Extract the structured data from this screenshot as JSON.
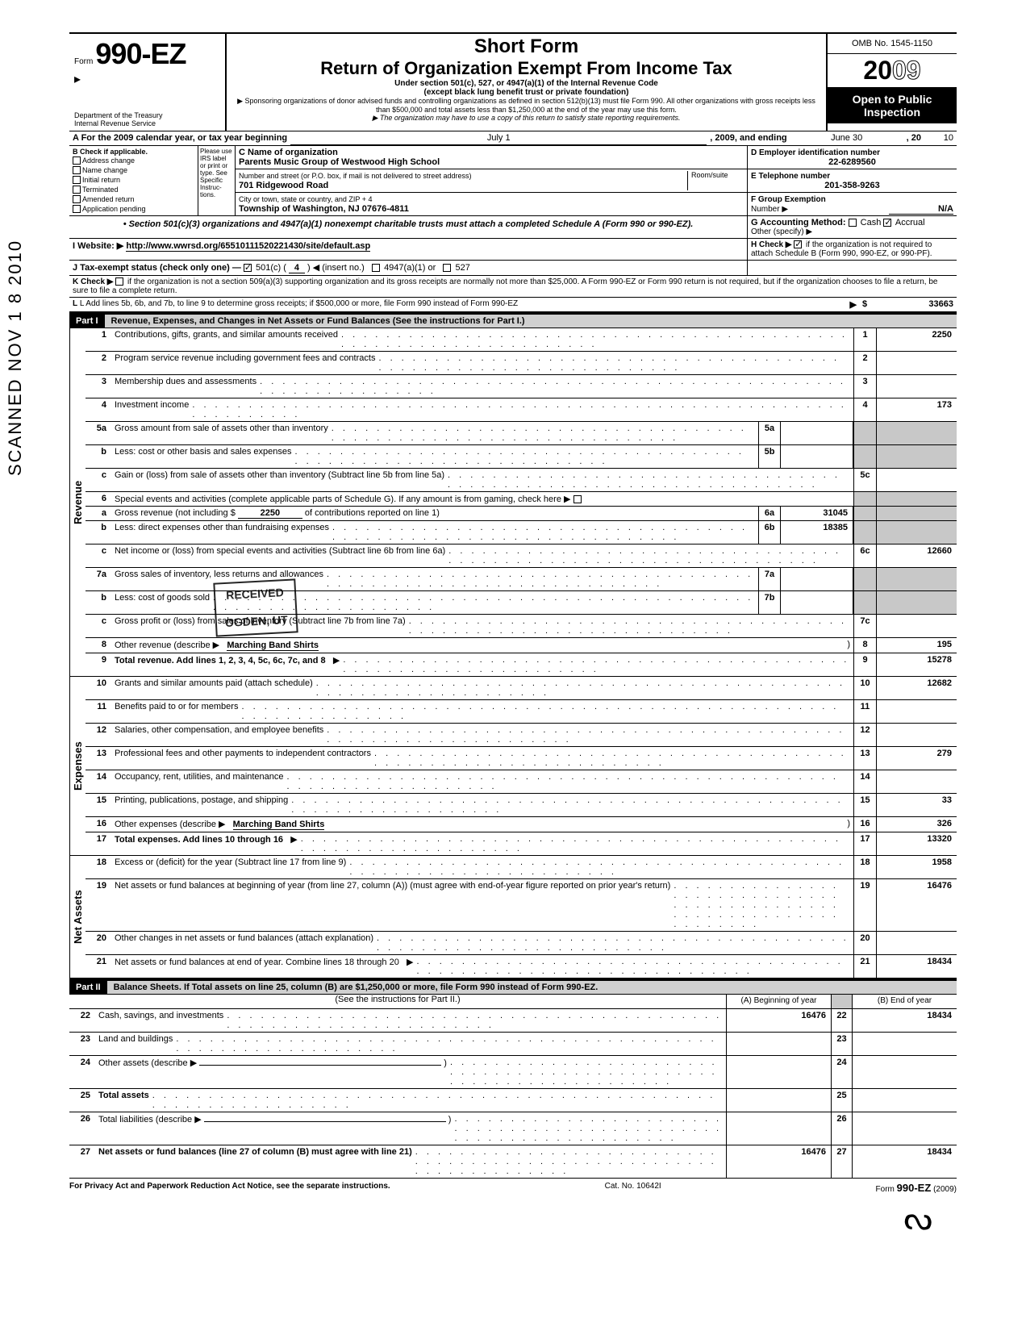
{
  "header": {
    "form_prefix": "Form",
    "form_number": "990-EZ",
    "dept1": "Department of the Treasury",
    "dept2": "Internal Revenue Service",
    "short_form": "Short Form",
    "main_title": "Return of Organization Exempt From Income Tax",
    "sub1": "Under section 501(c), 527, or 4947(a)(1) of the Internal Revenue Code",
    "sub2": "(except black lung benefit trust or private foundation)",
    "sub3": "▶ Sponsoring organizations of donor advised funds and controlling organizations as defined in section 512(b)(13) must file Form 990. All other organizations with gross receipts less than $500,000 and total assets less than $1,250,000 at the end of the year may use this form.",
    "sub4": "▶ The organization may have to use a copy of this return to satisfy state reporting requirements.",
    "omb": "OMB No. 1545-1150",
    "year_prefix": "20",
    "year_suffix": "09",
    "open1": "Open to Public",
    "open2": "Inspection"
  },
  "row_a": {
    "label": "A For the 2009 calendar year, or tax year beginning",
    "begin": "July 1",
    "mid": ", 2009, and ending",
    "end": "June 30",
    "end2": ", 20",
    "end_yr": "10"
  },
  "b": {
    "label": "B Check if applicable.",
    "items": [
      "Address change",
      "Name change",
      "Initial return",
      "Terminated",
      "Amended return",
      "Application pending"
    ],
    "please": "Please use IRS label or print or type. See Specific Instruc-tions."
  },
  "c": {
    "label": "C Name of organization",
    "name": "Parents Music Group of Westwood High School",
    "addr_label": "Number and street (or P.O. box, if mail is not delivered to street address)",
    "room": "Room/suite",
    "street": "701 Ridgewood Road",
    "city_label": "City or town, state or country, and ZIP + 4",
    "city": "Township of Washington, NJ 07676-4811"
  },
  "d": {
    "label": "D Employer identification number",
    "ein": "22-6289560",
    "e_label": "E Telephone number",
    "phone": "201-358-9263",
    "f_label": "F Group Exemption",
    "f_num": "Number ▶",
    "f_val": "N/A"
  },
  "section_note": "• Section 501(c)(3) organizations and 4947(a)(1) nonexempt charitable trusts must attach a completed Schedule A (Form 990 or 990-EZ).",
  "g": {
    "label": "G Accounting Method:",
    "cash": "Cash",
    "accrual": "Accrual",
    "other": "Other (specify) ▶"
  },
  "h": {
    "text": "H Check ▶",
    "text2": "if the organization is not required to attach Schedule B (Form 990, 990-EZ, or 990-PF)."
  },
  "i": {
    "label": "I  Website: ▶",
    "url": "http://www.wwrsd.org/65510111520221430/site/default.asp"
  },
  "j": {
    "label": "J Tax-exempt status (check only one) —",
    "c501": "501(c) (",
    "insert": "4",
    "after": ") ◀ (insert no.)",
    "opt2": "4947(a)(1) or",
    "opt3": "527"
  },
  "k": {
    "label": "K Check ▶",
    "text": "if the organization is not a section 509(a)(3) supporting organization and its gross receipts are normally not more than $25,000. A Form 990-EZ or Form 990 return is not required, but if the organization chooses to file a return, be sure to file a complete return."
  },
  "l": {
    "label": "L Add lines 5b, 6b, and 7b, to line 9 to determine gross receipts; if $500,000 or more, file Form 990 instead of Form 990-EZ",
    "arrow": "▶",
    "dollar": "$",
    "val": "33663"
  },
  "part1": {
    "label": "Part I",
    "desc": "Revenue, Expenses, and Changes in Net Assets or Fund Balances (See the instructions for Part I.)"
  },
  "side_labels": {
    "rev": "Revenue",
    "exp": "Expenses",
    "na": "Net Assets"
  },
  "lines": {
    "1": {
      "desc": "Contributions, gifts, grants, and similar amounts received",
      "val": "2250"
    },
    "2": {
      "desc": "Program service revenue including government fees and contracts",
      "val": ""
    },
    "3": {
      "desc": "Membership dues and assessments",
      "val": ""
    },
    "4": {
      "desc": "Investment income",
      "val": "173"
    },
    "5a": {
      "desc": "Gross amount from sale of assets other than inventory",
      "sub": "5a",
      "subval": ""
    },
    "5b": {
      "desc": "Less: cost or other basis and sales expenses",
      "sub": "5b",
      "subval": ""
    },
    "5c": {
      "desc": "Gain or (loss) from sale of assets other than inventory (Subtract line 5b from line 5a)",
      "val": ""
    },
    "6": {
      "desc": "Special events and activities (complete applicable parts of Schedule G). If any amount is from gaming, check here ▶"
    },
    "6a": {
      "desc_pre": "Gross revenue (not including $",
      "contrib": "2250",
      "desc_post": "of contributions reported on line 1)",
      "sub": "6a",
      "subval": "31045"
    },
    "6b": {
      "desc": "Less: direct expenses other than fundraising expenses",
      "sub": "6b",
      "subval": "18385"
    },
    "6c": {
      "desc": "Net income or (loss) from special events and activities (Subtract line 6b from line 6a)",
      "val": "12660"
    },
    "7a": {
      "desc": "Gross sales of inventory, less returns and allowances",
      "sub": "7a",
      "subval": ""
    },
    "7b": {
      "desc": "Less: cost of goods sold",
      "sub": "7b",
      "subval": ""
    },
    "7c": {
      "desc": "Gross profit or (loss) from sales of inventory (Subtract line 7b from line 7a)",
      "val": ""
    },
    "8": {
      "desc": "Other revenue (describe ▶",
      "extra": "Marching Band Shirts",
      "val": "195"
    },
    "9": {
      "desc": "Total revenue. Add lines 1, 2, 3, 4, 5c, 6c, 7c, and 8",
      "val": "15278"
    },
    "10": {
      "desc": "Grants and similar amounts paid (attach schedule)",
      "val": "12682"
    },
    "11": {
      "desc": "Benefits paid to or for members",
      "val": ""
    },
    "12": {
      "desc": "Salaries, other compensation, and employee benefits",
      "val": ""
    },
    "13": {
      "desc": "Professional fees and other payments to independent contractors",
      "val": "279"
    },
    "14": {
      "desc": "Occupancy, rent, utilities, and maintenance",
      "val": ""
    },
    "15": {
      "desc": "Printing, publications, postage, and shipping",
      "val": "33"
    },
    "16": {
      "desc": "Other expenses (describe ▶",
      "extra": "Marching Band Shirts",
      "val": "326"
    },
    "17": {
      "desc": "Total expenses. Add lines 10 through 16",
      "val": "13320"
    },
    "18": {
      "desc": "Excess or (deficit) for the year (Subtract line 17 from line 9)",
      "val": "1958"
    },
    "19": {
      "desc": "Net assets or fund balances at beginning of year (from line 27, column (A)) (must agree with end-of-year figure reported on prior year's return)",
      "val": "16476"
    },
    "20": {
      "desc": "Other changes in net assets or fund balances (attach explanation)",
      "val": ""
    },
    "21": {
      "desc": "Net assets or fund balances at end of year. Combine lines 18 through 20",
      "val": "18434"
    }
  },
  "part2": {
    "label": "Part II",
    "desc": "Balance Sheets. If Total assets on line 25, column (B) are $1,250,000 or more, file Form 990 instead of Form 990-EZ.",
    "see": "(See the instructions for Part II.)",
    "colA": "(A) Beginning of year",
    "colB": "(B) End of year"
  },
  "bal": {
    "22": {
      "desc": "Cash, savings, and investments",
      "a": "16476",
      "b": "18434"
    },
    "23": {
      "desc": "Land and buildings",
      "a": "",
      "b": ""
    },
    "24": {
      "desc": "Other assets (describe ▶",
      "a": "",
      "b": ""
    },
    "25": {
      "desc": "Total assets",
      "a": "",
      "b": ""
    },
    "26": {
      "desc": "Total liabilities (describe ▶",
      "a": "",
      "b": ""
    },
    "27": {
      "desc": "Net assets or fund balances (line 27 of column (B) must agree with line 21)",
      "a": "16476",
      "b": "18434"
    }
  },
  "footer": {
    "left": "For Privacy Act and Paperwork Reduction Act Notice, see the separate instructions.",
    "mid": "Cat. No. 10642I",
    "right": "Form 990-EZ (2009)"
  },
  "scanned": "SCANNED  NOV 1 8 2010",
  "stamp": "RECEIVED\n\nOGDEN, UT"
}
